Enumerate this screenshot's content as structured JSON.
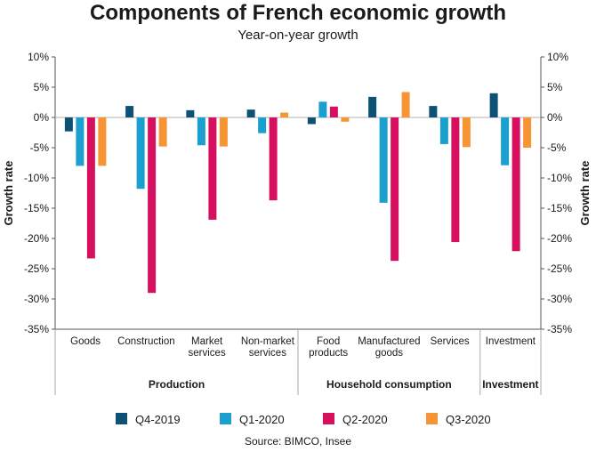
{
  "chart_data": {
    "type": "bar",
    "title": "Components of French economic growth",
    "subtitle": "Year-on-year growth",
    "ylabel": "Growth rate",
    "ylim": [
      -35,
      10
    ],
    "yticks": [
      10,
      5,
      0,
      -5,
      -10,
      -15,
      -20,
      -25,
      -30,
      -35
    ],
    "ytick_labels": [
      "10%",
      "5%",
      "0%",
      "-5%",
      "-10%",
      "-15%",
      "-20%",
      "-25%",
      "-30%",
      "-35%"
    ],
    "grid": false,
    "legend_position": "bottom",
    "categories": [
      [
        "Goods"
      ],
      [
        "Construction"
      ],
      [
        "Market",
        "services"
      ],
      [
        "Non-market",
        "services"
      ],
      [
        "Food",
        "products"
      ],
      [
        "Manufactured",
        "goods"
      ],
      [
        "Services"
      ],
      [
        "Investment"
      ]
    ],
    "groups": [
      {
        "label": "Production",
        "categories": 4
      },
      {
        "label": "Household consumption",
        "categories": 3
      },
      {
        "label": "Investment",
        "categories": 1
      }
    ],
    "series": [
      {
        "name": "Q4-2019",
        "color": "#0d5275",
        "values": [
          -2.3,
          1.9,
          1.2,
          1.3,
          -1.1,
          3.4,
          1.9,
          4.0
        ]
      },
      {
        "name": "Q1-2020",
        "color": "#1a9fcf",
        "values": [
          -8.0,
          -11.8,
          -4.6,
          -2.6,
          2.6,
          -14.1,
          -4.4,
          -7.9
        ]
      },
      {
        "name": "Q2-2020",
        "color": "#d6105f",
        "values": [
          -23.3,
          -29.0,
          -16.9,
          -13.7,
          1.8,
          -23.7,
          -20.6,
          -22.1
        ]
      },
      {
        "name": "Q3-2020",
        "color": "#f79433",
        "values": [
          -8.0,
          -4.8,
          -4.8,
          0.8,
          -0.7,
          4.2,
          -4.9,
          -5.0
        ]
      }
    ],
    "source": "Source: BIMCO, Insee"
  }
}
